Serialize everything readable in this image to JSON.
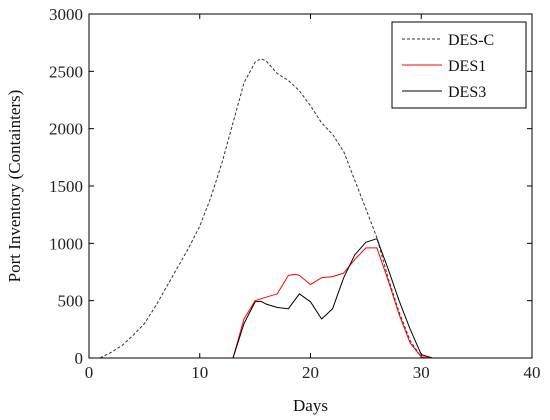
{
  "chart_data": {
    "type": "line",
    "title": "",
    "xlabel": "Days",
    "ylabel": "Port Inventory (Containters)",
    "xlim": [
      0,
      40
    ],
    "ylim": [
      0,
      3000
    ],
    "xticks": [
      0,
      10,
      20,
      30,
      40
    ],
    "yticks": [
      0,
      500,
      1000,
      1500,
      2000,
      2500,
      3000
    ],
    "grid": false,
    "legend_position": "top-right",
    "series": [
      {
        "name": "DES-C",
        "color": "#333333",
        "style": "dashed",
        "x": [
          1,
          2,
          3,
          4,
          5,
          6,
          7,
          8,
          9,
          10,
          11,
          12,
          13,
          14,
          15,
          15.5,
          16,
          17,
          18,
          19,
          20,
          21,
          22,
          23,
          24,
          25,
          26,
          27,
          28,
          29,
          30,
          31,
          32,
          40
        ],
        "y": [
          0,
          50,
          110,
          200,
          300,
          450,
          620,
          790,
          960,
          1150,
          1400,
          1700,
          2050,
          2400,
          2580,
          2610,
          2590,
          2480,
          2420,
          2330,
          2200,
          2050,
          1950,
          1800,
          1550,
          1300,
          1050,
          700,
          400,
          150,
          10,
          0,
          0,
          0
        ]
      },
      {
        "name": "DES1",
        "color": "#ff0000",
        "style": "solid",
        "x": [
          0,
          13,
          14,
          15,
          16,
          17,
          18,
          18.7,
          19,
          20,
          21,
          22,
          23,
          24,
          25,
          26,
          27,
          28,
          29,
          30,
          31,
          40
        ],
        "y": [
          0,
          0,
          340,
          500,
          530,
          560,
          720,
          730,
          720,
          640,
          700,
          710,
          740,
          860,
          960,
          960,
          680,
          380,
          130,
          10,
          0,
          0
        ]
      },
      {
        "name": "DES3",
        "color": "#000000",
        "style": "solid",
        "x": [
          0,
          13,
          14,
          15,
          15.5,
          16,
          17,
          18,
          19,
          20,
          21,
          22,
          23,
          24,
          25,
          26,
          27,
          28,
          29,
          30,
          31,
          40
        ],
        "y": [
          0,
          0,
          300,
          490,
          495,
          470,
          440,
          430,
          560,
          490,
          340,
          430,
          700,
          900,
          1010,
          1040,
          780,
          500,
          250,
          30,
          0,
          0
        ]
      }
    ]
  }
}
